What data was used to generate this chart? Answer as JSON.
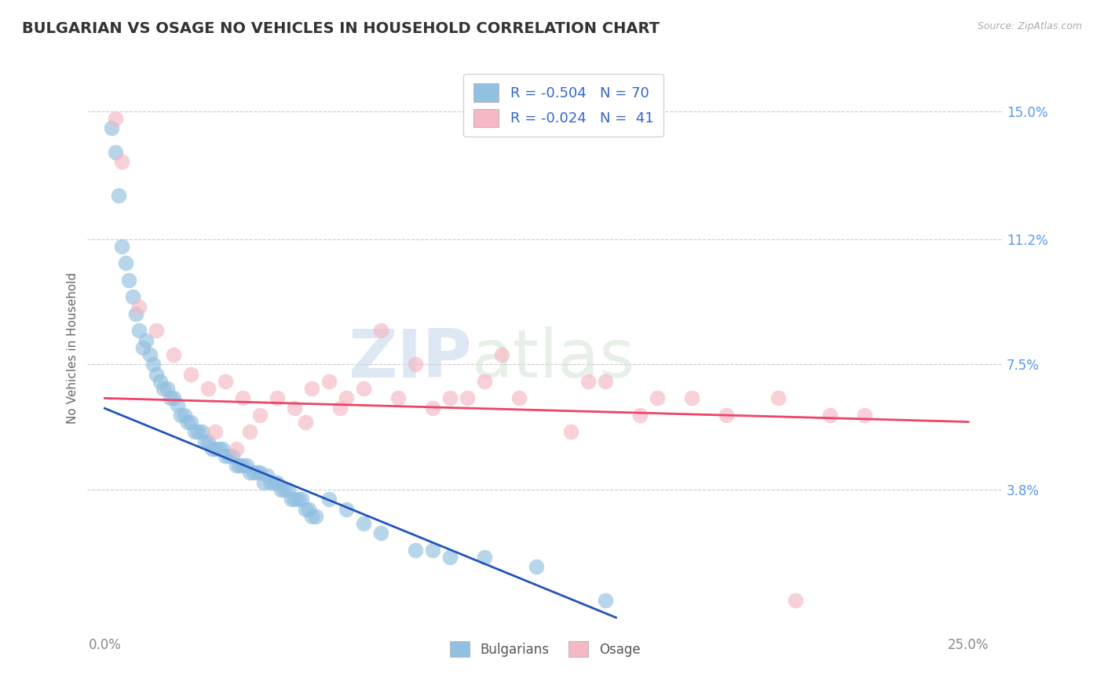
{
  "title": "BULGARIAN VS OSAGE NO VEHICLES IN HOUSEHOLD CORRELATION CHART",
  "source": "Source: ZipAtlas.com",
  "ylabel": "No Vehicles in Household",
  "xlim": [
    -0.5,
    26.0
  ],
  "ylim": [
    -0.5,
    16.5
  ],
  "xtick_positions": [
    0.0,
    25.0
  ],
  "xticklabels": [
    "0.0%",
    "25.0%"
  ],
  "ytick_positions": [
    3.8,
    7.5,
    11.2,
    15.0
  ],
  "ytick_labels": [
    "3.8%",
    "7.5%",
    "11.2%",
    "15.0%"
  ],
  "bulgarian_color": "#92C0E0",
  "osage_color": "#F5B8C4",
  "bulgarian_line_color": "#2255BB",
  "osage_line_color": "#EE4466",
  "legend_R_bulgarian": "-0.504",
  "legend_N_bulgarian": "70",
  "legend_R_osage": "-0.024",
  "legend_N_osage": "41",
  "watermark_zip": "ZIP",
  "watermark_atlas": "atlas",
  "background_color": "#FFFFFF",
  "grid_color": "#CCCCCC",
  "title_color": "#333333",
  "title_fontsize": 14,
  "axis_label_color": "#666666",
  "tick_label_color_right": "#5599EE",
  "tick_label_color_bottom": "#888888",
  "bulgarian_x": [
    0.2,
    0.3,
    0.4,
    0.5,
    0.6,
    0.7,
    0.8,
    0.9,
    1.0,
    1.1,
    1.2,
    1.3,
    1.4,
    1.5,
    1.6,
    1.7,
    1.8,
    1.9,
    2.0,
    2.1,
    2.2,
    2.3,
    2.4,
    2.5,
    2.6,
    2.7,
    2.8,
    2.9,
    3.0,
    3.1,
    3.2,
    3.3,
    3.4,
    3.5,
    3.6,
    3.7,
    3.8,
    3.9,
    4.0,
    4.1,
    4.2,
    4.3,
    4.4,
    4.5,
    4.6,
    4.7,
    4.8,
    4.9,
    5.0,
    5.1,
    5.2,
    5.3,
    5.4,
    5.5,
    5.6,
    5.7,
    5.8,
    5.9,
    6.0,
    6.1,
    6.5,
    7.0,
    7.5,
    8.0,
    9.0,
    9.5,
    10.0,
    11.0,
    12.5,
    14.5
  ],
  "bulgarian_y": [
    14.5,
    13.8,
    12.5,
    11.0,
    10.5,
    10.0,
    9.5,
    9.0,
    8.5,
    8.0,
    8.2,
    7.8,
    7.5,
    7.2,
    7.0,
    6.8,
    6.8,
    6.5,
    6.5,
    6.3,
    6.0,
    6.0,
    5.8,
    5.8,
    5.5,
    5.5,
    5.5,
    5.2,
    5.2,
    5.0,
    5.0,
    5.0,
    5.0,
    4.8,
    4.8,
    4.8,
    4.5,
    4.5,
    4.5,
    4.5,
    4.3,
    4.3,
    4.3,
    4.3,
    4.0,
    4.2,
    4.0,
    4.0,
    4.0,
    3.8,
    3.8,
    3.8,
    3.5,
    3.5,
    3.5,
    3.5,
    3.2,
    3.2,
    3.0,
    3.0,
    3.5,
    3.2,
    2.8,
    2.5,
    2.0,
    2.0,
    1.8,
    1.8,
    1.5,
    0.5
  ],
  "osage_x": [
    0.3,
    0.5,
    1.0,
    1.5,
    2.0,
    2.5,
    3.0,
    3.5,
    4.0,
    4.5,
    5.0,
    5.5,
    6.0,
    6.5,
    7.0,
    8.0,
    9.0,
    10.5,
    11.5,
    13.5,
    14.5,
    15.5,
    17.0,
    18.0,
    19.5,
    20.0,
    21.0,
    22.0,
    7.5,
    8.5,
    9.5,
    10.0,
    11.0,
    12.0,
    14.0,
    16.0,
    3.2,
    3.8,
    4.2,
    5.8,
    6.8
  ],
  "osage_y": [
    14.8,
    13.5,
    9.2,
    8.5,
    7.8,
    7.2,
    6.8,
    7.0,
    6.5,
    6.0,
    6.5,
    6.2,
    6.8,
    7.0,
    6.5,
    8.5,
    7.5,
    6.5,
    7.8,
    5.5,
    7.0,
    6.0,
    6.5,
    6.0,
    6.5,
    0.5,
    6.0,
    6.0,
    6.8,
    6.5,
    6.2,
    6.5,
    7.0,
    6.5,
    7.0,
    6.5,
    5.5,
    5.0,
    5.5,
    5.8,
    6.2
  ],
  "blue_line_x": [
    0.0,
    14.8
  ],
  "blue_line_y": [
    6.2,
    0.0
  ],
  "pink_line_x": [
    0.0,
    25.0
  ],
  "pink_line_y": [
    6.5,
    5.8
  ]
}
